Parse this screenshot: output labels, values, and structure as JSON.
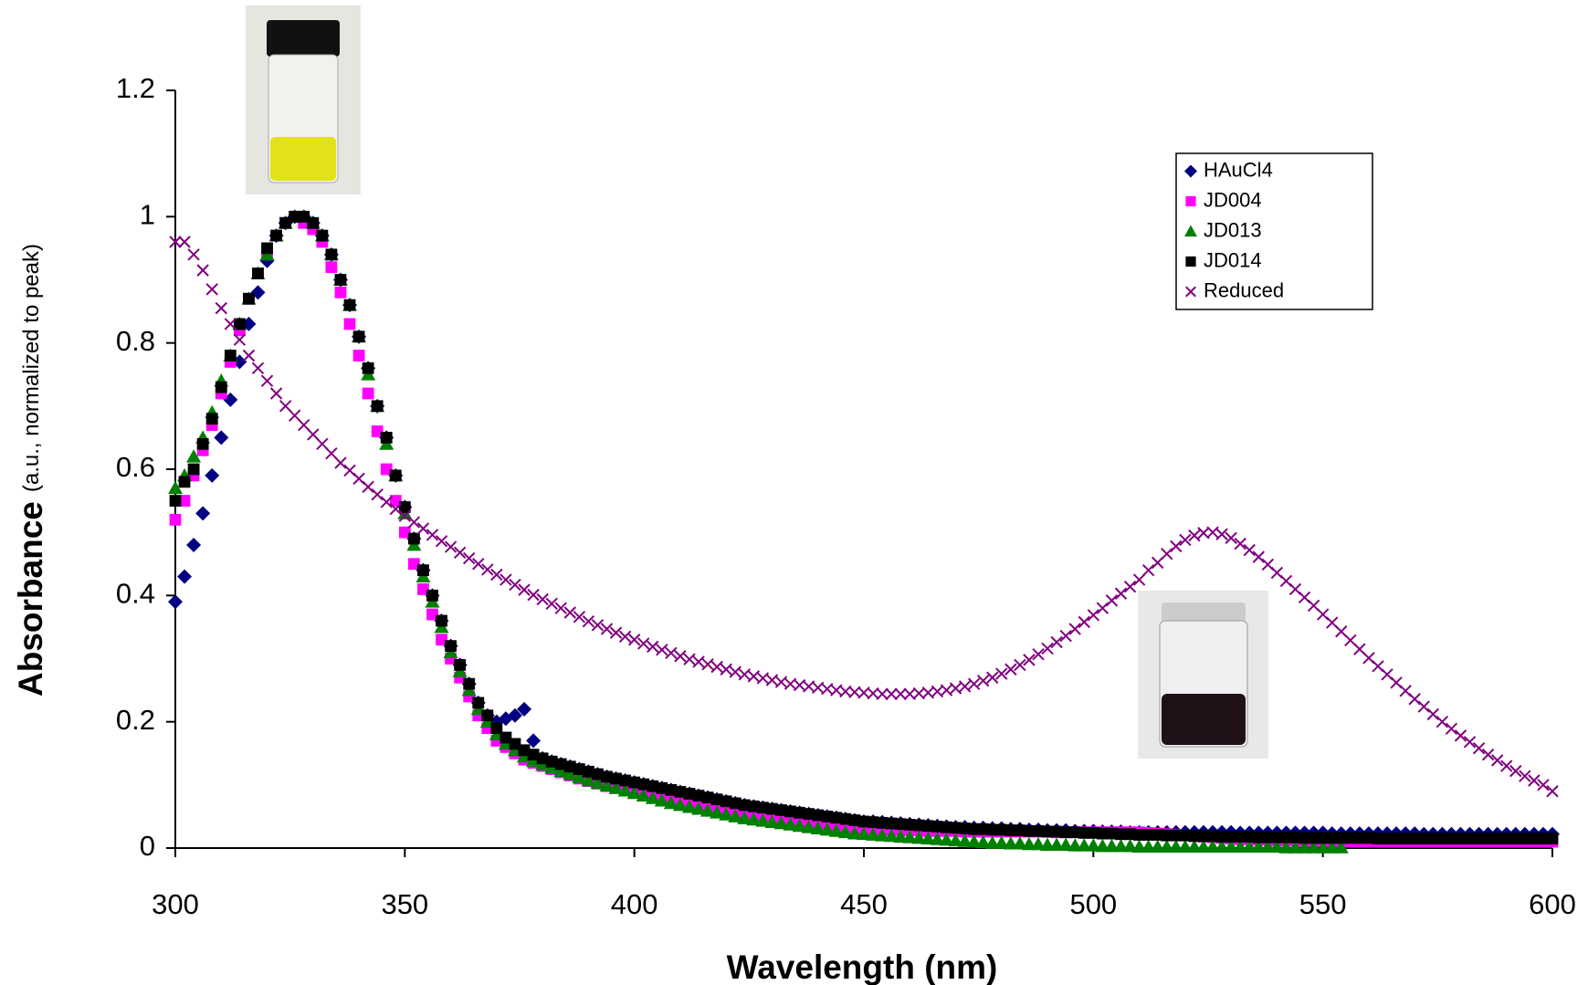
{
  "chart_data": {
    "type": "scatter",
    "x_label": "Wavelength (nm)",
    "y_label": "Absorbance",
    "y_label_note": "(a.u., normalized to peak)",
    "xlim": [
      300,
      600
    ],
    "xticks": [
      300,
      350,
      400,
      450,
      500,
      550,
      600
    ],
    "ylim": [
      0,
      1.2
    ],
    "yticks": [
      0,
      0.2,
      0.4,
      0.6,
      0.8,
      1,
      1.2
    ],
    "legend": "upper right",
    "x": [
      300,
      302,
      304,
      306,
      308,
      310,
      312,
      314,
      316,
      318,
      320,
      322,
      324,
      326,
      328,
      330,
      332,
      334,
      336,
      338,
      340,
      342,
      344,
      346,
      348,
      350,
      352,
      354,
      356,
      358,
      360,
      362,
      364,
      366,
      368,
      370,
      372,
      374,
      376,
      378,
      380,
      382,
      384,
      386,
      388,
      390,
      392,
      394,
      396,
      398,
      400,
      402,
      404,
      406,
      408,
      410,
      412,
      414,
      416,
      418,
      420,
      422,
      424,
      426,
      428,
      430,
      432,
      434,
      436,
      438,
      440,
      442,
      444,
      446,
      448,
      450,
      452,
      454,
      456,
      458,
      460,
      462,
      464,
      466,
      468,
      470,
      472,
      474,
      476,
      478,
      480,
      482,
      484,
      486,
      488,
      490,
      492,
      494,
      496,
      498,
      500,
      502,
      504,
      506,
      508,
      510,
      512,
      514,
      516,
      518,
      520,
      522,
      524,
      526,
      528,
      530,
      532,
      534,
      536,
      538,
      540,
      542,
      544,
      546,
      548,
      550,
      552,
      554,
      556,
      558,
      560,
      562,
      564,
      566,
      568,
      570,
      572,
      574,
      576,
      578,
      580,
      582,
      584,
      586,
      588,
      590,
      592,
      594,
      596,
      598,
      600
    ],
    "series": [
      {
        "name": "HAuCl4",
        "color": "#000080",
        "marker": "diamond",
        "values": [
          0.39,
          0.43,
          0.48,
          0.53,
          0.59,
          0.65,
          0.71,
          0.77,
          0.83,
          0.88,
          0.93,
          0.97,
          0.99,
          1,
          1,
          0.99,
          0.97,
          0.94,
          0.9,
          0.86,
          0.81,
          0.76,
          0.7,
          0.65,
          0.59,
          0.54,
          0.49,
          0.44,
          0.4,
          0.36,
          0.32,
          0.29,
          0.26,
          0.23,
          0.21,
          0.2,
          0.205,
          0.21,
          0.22,
          0.17,
          0.142,
          0.137,
          0.133,
          0.129,
          0.125,
          0.121,
          0.117,
          0.113,
          0.11,
          0.107,
          0.104,
          0.101,
          0.098,
          0.095,
          0.092,
          0.089,
          0.086,
          0.083,
          0.08,
          0.077,
          0.074,
          0.071,
          0.068,
          0.066,
          0.064,
          0.062,
          0.06,
          0.058,
          0.056,
          0.054,
          0.052,
          0.05,
          0.048,
          0.046,
          0.044,
          0.042,
          0.042,
          0.041,
          0.04,
          0.039,
          0.038,
          0.037,
          0.036,
          0.035,
          0.034,
          0.033,
          0.033,
          0.032,
          0.032,
          0.031,
          0.031,
          0.03,
          0.03,
          0.029,
          0.029,
          0.028,
          0.028,
          0.028,
          0.027,
          0.027,
          0.027,
          0.026,
          0.026,
          0.026,
          0.025,
          0.025,
          0.025,
          0.025,
          0.025,
          0.025,
          0.025,
          0.025,
          0.025,
          0.025,
          0.025,
          0.025,
          0.024,
          0.024,
          0.024,
          0.024,
          0.024,
          0.024,
          0.024,
          0.024,
          0.024,
          0.024,
          0.023,
          0.023,
          0.023,
          0.023,
          0.023,
          0.023,
          0.023,
          0.023,
          0.023,
          0.023,
          0.022,
          0.022,
          0.022,
          0.022,
          0.022,
          0.022,
          0.022,
          0.022,
          0.022,
          0.022,
          0.022,
          0.022,
          0.022,
          0.022,
          0.022
        ]
      },
      {
        "name": "JD004",
        "color": "#ff00ff",
        "marker": "square",
        "values": [
          0.52,
          0.55,
          0.59,
          0.63,
          0.67,
          0.72,
          0.77,
          0.82,
          0.87,
          0.91,
          0.94,
          0.97,
          0.99,
          1,
          0.99,
          0.98,
          0.96,
          0.92,
          0.88,
          0.83,
          0.78,
          0.72,
          0.66,
          0.6,
          0.55,
          0.5,
          0.45,
          0.41,
          0.37,
          0.33,
          0.3,
          0.27,
          0.24,
          0.21,
          0.19,
          0.17,
          0.16,
          0.15,
          0.14,
          0.135,
          0.13,
          0.125,
          0.12,
          0.115,
          0.11,
          0.106,
          0.102,
          0.098,
          0.095,
          0.092,
          0.089,
          0.086,
          0.083,
          0.08,
          0.077,
          0.074,
          0.071,
          0.068,
          0.065,
          0.062,
          0.059,
          0.056,
          0.053,
          0.051,
          0.049,
          0.047,
          0.045,
          0.043,
          0.041,
          0.039,
          0.037,
          0.035,
          0.033,
          0.032,
          0.031,
          0.03,
          0.03,
          0.029,
          0.029,
          0.028,
          0.028,
          0.028,
          0.027,
          0.027,
          0.027,
          0.027,
          0.026,
          0.026,
          0.026,
          0.026,
          0.026,
          0.026,
          0.026,
          0.026,
          0.026,
          0.026,
          0.025,
          0.025,
          0.025,
          0.025,
          0.025,
          0.025,
          0.025,
          0.025,
          0.025,
          0.025,
          0.024,
          0.023,
          0.022,
          0.021,
          0.02,
          0.019,
          0.018,
          0.017,
          0.016,
          0.015,
          0.014,
          0.014,
          0.013,
          0.013,
          0.012,
          0.012,
          0.012,
          0.011,
          0.011,
          0.011,
          0.01,
          0.01,
          0.01,
          0.01,
          0.01,
          0.01,
          0.01,
          0.01,
          0.01,
          0.01,
          0.01,
          0.01,
          0.01,
          0.01,
          0.01,
          0.01,
          0.01,
          0.01,
          0.01,
          0.01,
          0.01,
          0.01,
          0.01,
          0.01,
          0.01
        ]
      },
      {
        "name": "JD013",
        "color": "#008000",
        "marker": "triangle",
        "values": [
          0.57,
          0.59,
          0.62,
          0.65,
          0.69,
          0.74,
          0.78,
          0.83,
          0.87,
          0.91,
          0.94,
          0.97,
          0.99,
          1,
          1,
          0.99,
          0.97,
          0.94,
          0.9,
          0.86,
          0.81,
          0.75,
          0.7,
          0.64,
          0.59,
          0.53,
          0.48,
          0.43,
          0.39,
          0.35,
          0.31,
          0.28,
          0.25,
          0.22,
          0.2,
          0.18,
          0.165,
          0.155,
          0.145,
          0.138,
          0.132,
          0.127,
          0.122,
          0.117,
          0.112,
          0.107,
          0.103,
          0.099,
          0.095,
          0.091,
          0.087,
          0.083,
          0.079,
          0.075,
          0.071,
          0.068,
          0.065,
          0.062,
          0.059,
          0.056,
          0.053,
          0.05,
          0.047,
          0.045,
          0.043,
          0.041,
          0.039,
          0.037,
          0.035,
          0.033,
          0.031,
          0.029,
          0.027,
          0.025,
          0.023,
          0.022,
          0.021,
          0.02,
          0.019,
          0.018,
          0.017,
          0.016,
          0.015,
          0.014,
          0.013,
          0.012,
          0.011,
          0.01,
          0.009,
          0.008,
          0.008,
          0.007,
          0.007,
          0.006,
          0.006,
          0.005,
          0.005,
          0.005,
          0.004,
          0.004,
          0.004,
          0.003,
          0.003,
          0.003,
          0.003,
          0.002,
          0.002,
          0.002,
          0.002,
          0.002,
          0.002,
          0.002,
          0.002,
          0.002,
          0.002,
          0.002,
          0.002,
          0.002,
          0.002,
          0.002,
          0.002,
          0.001,
          0.001,
          0.001,
          0.001,
          0.001,
          0.001,
          0.001,
          null,
          null,
          null,
          null,
          null,
          null,
          null,
          null,
          null,
          null,
          null,
          null,
          null,
          null,
          null,
          null,
          null,
          null,
          null,
          null,
          null,
          null,
          null
        ]
      },
      {
        "name": "JD014",
        "color": "#000000",
        "marker": "square",
        "values": [
          0.55,
          0.58,
          0.6,
          0.64,
          0.68,
          0.73,
          0.78,
          0.83,
          0.87,
          0.91,
          0.95,
          0.97,
          0.99,
          1,
          1,
          0.99,
          0.97,
          0.94,
          0.9,
          0.86,
          0.81,
          0.76,
          0.7,
          0.65,
          0.59,
          0.54,
          0.49,
          0.44,
          0.4,
          0.36,
          0.32,
          0.29,
          0.26,
          0.23,
          0.21,
          0.19,
          0.175,
          0.165,
          0.155,
          0.148,
          0.142,
          0.137,
          0.133,
          0.129,
          0.125,
          0.121,
          0.117,
          0.113,
          0.11,
          0.107,
          0.104,
          0.101,
          0.098,
          0.095,
          0.092,
          0.089,
          0.086,
          0.083,
          0.08,
          0.077,
          0.074,
          0.071,
          0.068,
          0.066,
          0.064,
          0.062,
          0.06,
          0.058,
          0.056,
          0.054,
          0.052,
          0.05,
          0.048,
          0.046,
          0.044,
          0.042,
          0.041,
          0.04,
          0.039,
          0.038,
          0.037,
          0.036,
          0.035,
          0.034,
          0.033,
          0.032,
          0.031,
          0.03,
          0.03,
          0.029,
          0.029,
          0.028,
          0.028,
          0.027,
          0.027,
          0.026,
          0.026,
          0.025,
          0.025,
          0.024,
          0.024,
          0.023,
          0.023,
          0.022,
          0.022,
          0.021,
          0.021,
          0.021,
          0.02,
          0.02,
          0.02,
          0.019,
          0.019,
          0.019,
          0.018,
          0.018,
          0.018,
          0.018,
          0.017,
          0.017,
          0.017,
          0.017,
          0.017,
          0.016,
          0.016,
          0.016,
          0.016,
          0.016,
          0.016,
          0.016,
          0.016,
          0.015,
          0.015,
          0.015,
          0.015,
          0.015,
          0.015,
          0.015,
          0.015,
          0.015,
          0.015,
          0.015,
          0.015,
          0.015,
          0.015,
          0.015,
          0.015,
          0.015,
          0.015,
          0.015,
          0.015
        ]
      },
      {
        "name": "Reduced",
        "color": "#800080",
        "marker": "x",
        "values": [
          0.96,
          0.96,
          0.94,
          0.915,
          0.885,
          0.855,
          0.83,
          0.805,
          0.78,
          0.76,
          0.74,
          0.72,
          0.7,
          0.685,
          0.67,
          0.655,
          0.64,
          0.625,
          0.61,
          0.598,
          0.585,
          0.572,
          0.56,
          0.548,
          0.537,
          0.526,
          0.516,
          0.506,
          0.496,
          0.486,
          0.477,
          0.468,
          0.459,
          0.45,
          0.441,
          0.433,
          0.425,
          0.417,
          0.409,
          0.401,
          0.394,
          0.387,
          0.38,
          0.373,
          0.366,
          0.359,
          0.353,
          0.347,
          0.341,
          0.335,
          0.33,
          0.324,
          0.319,
          0.314,
          0.309,
          0.304,
          0.299,
          0.295,
          0.291,
          0.287,
          0.283,
          0.279,
          0.275,
          0.272,
          0.269,
          0.266,
          0.263,
          0.26,
          0.258,
          0.256,
          0.254,
          0.252,
          0.25,
          0.248,
          0.247,
          0.246,
          0.245,
          0.244,
          0.244,
          0.244,
          0.244,
          0.245,
          0.246,
          0.248,
          0.25,
          0.253,
          0.256,
          0.26,
          0.265,
          0.27,
          0.276,
          0.283,
          0.29,
          0.298,
          0.307,
          0.316,
          0.326,
          0.336,
          0.347,
          0.358,
          0.369,
          0.38,
          0.392,
          0.403,
          0.414,
          0.425,
          0.44,
          0.452,
          0.466,
          0.478,
          0.488,
          0.495,
          0.499,
          0.5,
          0.497,
          0.491,
          0.482,
          0.472,
          0.461,
          0.449,
          0.436,
          0.423,
          0.41,
          0.397,
          0.384,
          0.37,
          0.357,
          0.343,
          0.329,
          0.315,
          0.301,
          0.288,
          0.275,
          0.262,
          0.249,
          0.236,
          0.224,
          0.212,
          0.2,
          0.189,
          0.178,
          0.168,
          0.158,
          0.148,
          0.139,
          0.13,
          0.122,
          0.114,
          0.107,
          0.1,
          0.09
        ]
      }
    ]
  }
}
